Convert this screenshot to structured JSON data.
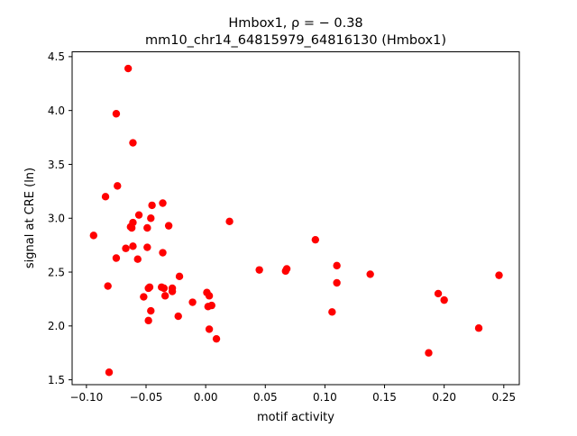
{
  "chart_data": {
    "type": "scatter",
    "title_line1": "Hmbox1, ρ = − 0.38",
    "title_line2": "mm10_chr14_64815979_64816130 (Hmbox1)",
    "xlabel": "motif activity",
    "ylabel": "signal at CRE (ln)",
    "xlim": [
      -0.112,
      0.263
    ],
    "ylim": [
      1.455,
      4.545
    ],
    "xticks": [
      -0.1,
      -0.05,
      0.0,
      0.05,
      0.1,
      0.15,
      0.2,
      0.25
    ],
    "xtick_labels": [
      "−0.10",
      "−0.05",
      "0.00",
      "0.05",
      "0.10",
      "0.15",
      "0.20",
      "0.25"
    ],
    "yticks": [
      1.5,
      2.0,
      2.5,
      3.0,
      3.5,
      4.0,
      4.5
    ],
    "ytick_labels": [
      "1.5",
      "2.0",
      "2.5",
      "3.0",
      "3.5",
      "4.0",
      "4.5"
    ],
    "grid": false,
    "marker_color": "#ff0000",
    "x": [
      -0.065,
      -0.075,
      -0.061,
      -0.074,
      -0.084,
      -0.094,
      -0.082,
      -0.081,
      -0.063,
      -0.061,
      -0.062,
      -0.056,
      -0.067,
      -0.061,
      -0.075,
      -0.057,
      -0.049,
      -0.046,
      -0.045,
      -0.036,
      -0.031,
      -0.049,
      -0.047,
      -0.036,
      -0.037,
      -0.052,
      -0.048,
      -0.035,
      -0.034,
      -0.028,
      -0.028,
      -0.022,
      -0.046,
      -0.023,
      -0.048,
      -0.011,
      0.001,
      0.003,
      0.002,
      0.005,
      0.003,
      0.009,
      0.02,
      0.045,
      0.067,
      0.068,
      0.092,
      0.11,
      0.11,
      0.106,
      0.138,
      0.187,
      0.195,
      0.2,
      0.229,
      0.246
    ],
    "y": [
      4.39,
      3.97,
      3.7,
      3.3,
      3.2,
      2.84,
      2.37,
      1.57,
      2.92,
      2.96,
      2.91,
      3.03,
      2.72,
      2.74,
      2.63,
      2.62,
      2.91,
      3.0,
      3.12,
      3.14,
      2.93,
      2.73,
      2.36,
      2.68,
      2.36,
      2.27,
      2.35,
      2.35,
      2.28,
      2.35,
      2.32,
      2.46,
      2.14,
      2.09,
      2.05,
      2.22,
      2.31,
      2.28,
      2.18,
      2.19,
      1.97,
      1.88,
      2.97,
      2.52,
      2.51,
      2.53,
      2.8,
      2.56,
      2.4,
      2.13,
      2.48,
      1.75,
      2.3,
      2.24,
      1.98,
      2.47
    ]
  }
}
